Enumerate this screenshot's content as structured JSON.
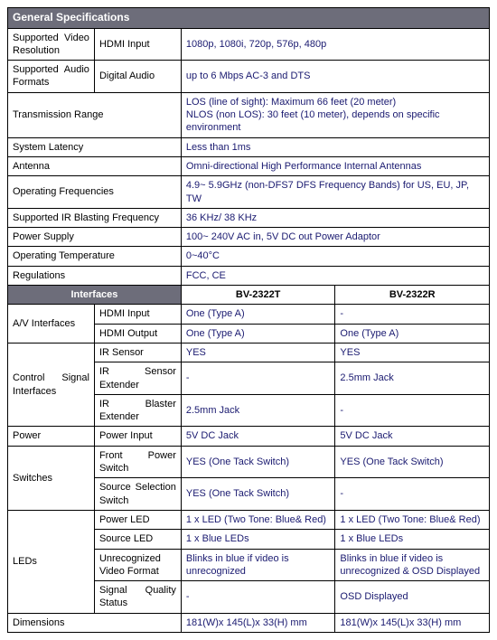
{
  "colors": {
    "header_bg": "#6d6d7a",
    "header_fg": "#ffffff",
    "value_fg": "#1a1a70",
    "border": "#000000",
    "bg": "#ffffff"
  },
  "fonts": {
    "base_size": 11,
    "header_size": 12
  },
  "col_widths_pct": [
    18,
    18,
    32,
    32
  ],
  "section1": {
    "title": "General Specifications",
    "rows": [
      {
        "label": "Supported Video Resolution",
        "sub": "HDMI Input",
        "value": "1080p, 1080i, 720p, 576p, 480p"
      },
      {
        "label": "Supported Audio Formats",
        "sub": "Digital Audio",
        "value": "up to 6 Mbps AC-3 and DTS"
      },
      {
        "label": "Transmission Range",
        "value": "LOS (line of sight): Maximum 66 feet (20 meter)\nNLOS (non LOS): 30 feet (10 meter), depends on specific environment"
      },
      {
        "label": "System Latency",
        "value": "Less than 1ms"
      },
      {
        "label": "Antenna",
        "value": "Omni-directional High Performance Internal Antennas"
      },
      {
        "label": "Operating Frequencies",
        "value": "4.9~ 5.9GHz (non-DFS7 DFS Frequency Bands) for US, EU, JP, TW"
      },
      {
        "label": "Supported IR Blasting Frequency",
        "value": "36 KHz/ 38 KHz"
      },
      {
        "label": "Power Supply",
        "value": "100~ 240V AC in, 5V DC out Power Adaptor"
      },
      {
        "label": "Operating Temperature",
        "value": "0~40°C"
      },
      {
        "label": "Regulations",
        "value": "FCC, CE"
      }
    ]
  },
  "interfaces": {
    "label": "Interfaces",
    "col_a": "BV-2322T",
    "col_b": "BV-2322R",
    "groups": [
      {
        "group": "A/V Interfaces",
        "rows": [
          {
            "sub": "HDMI Input",
            "a": "One (Type A)",
            "b": "-"
          },
          {
            "sub": "HDMI Output",
            "a": "One (Type A)",
            "b": "One (Type A)"
          }
        ]
      },
      {
        "group": "Control Signal Interfaces",
        "rows": [
          {
            "sub": "IR Sensor",
            "a": "YES",
            "b": "YES"
          },
          {
            "sub": "IR Sensor Extender",
            "a": "-",
            "b": "2.5mm Jack"
          },
          {
            "sub": "IR Blaster Extender",
            "a": "2.5mm Jack",
            "b": "-"
          }
        ]
      },
      {
        "group": "Power",
        "rows": [
          {
            "sub": "Power Input",
            "a": "5V DC Jack",
            "b": "5V DC Jack"
          }
        ]
      },
      {
        "group": "Switches",
        "rows": [
          {
            "sub": "Front Power Switch",
            "a": "YES (One Tack Switch)",
            "b": "YES (One Tack Switch)"
          },
          {
            "sub": "Source Selection Switch",
            "a": "YES (One Tack Switch)",
            "b": "-"
          }
        ]
      },
      {
        "group": "LEDs",
        "rows": [
          {
            "sub": "Power LED",
            "a": "1 x LED (Two Tone: Blue& Red)",
            "b": "1 x LED (Two Tone: Blue& Red)"
          },
          {
            "sub": "Source LED",
            "a": "1 x Blue LEDs",
            "b": "1 x Blue LEDs"
          },
          {
            "sub": "Unrecognized Video Format",
            "a": "Blinks in blue if video is unrecognized",
            "b": "Blinks in blue if video is unrecognized & OSD Displayed"
          },
          {
            "sub": "Signal Quality Status",
            "a": "-",
            "b": "OSD Displayed"
          }
        ]
      },
      {
        "group": "Dimensions",
        "single": true,
        "rows": [
          {
            "a": "181(W)x 145(L)x 33(H) mm",
            "b": "181(W)x 145(L)x 33(H) mm"
          }
        ]
      }
    ]
  }
}
